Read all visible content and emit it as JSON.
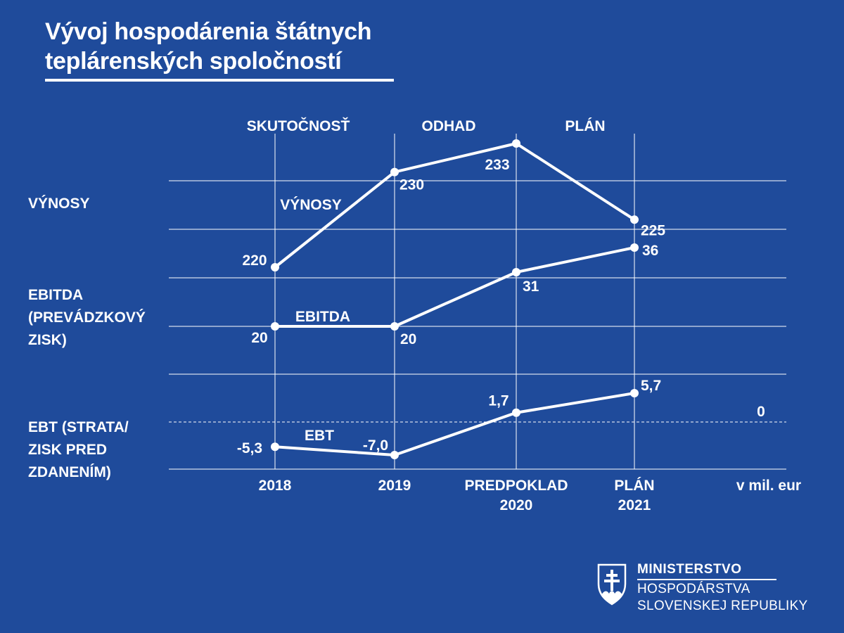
{
  "title": {
    "line1": "Vývoj hospodárenia štátnych",
    "line2": "teplárenských spoločností"
  },
  "row_labels": {
    "revenue": "VÝNOSY",
    "ebitda": "EBITDA\n(PREVÁDZKOVÝ\nZISK)",
    "ebt": "EBT (STRATA/\nZISK PRED\nZDANENÍM)"
  },
  "logo": {
    "line1": "MINISTERSTVO",
    "line2": "HOSPODÁRSTVA",
    "line3": "SLOVENSKEJ REPUBLIKY"
  },
  "colors": {
    "background": "#1f4b9b",
    "foreground": "#ffffff"
  },
  "chart_data": {
    "type": "line",
    "periods": [
      "SKUTOČNOSŤ",
      "ODHAD",
      "PLÁN"
    ],
    "categories": [
      "2018",
      "2019",
      "PREDPOKLAD\n2020",
      "PLÁN\n2021"
    ],
    "unit_label": "v mil. eur",
    "zero_label": "0",
    "series": [
      {
        "name": "VÝNOSY",
        "values": [
          220,
          230,
          233,
          225
        ],
        "labels": [
          "220",
          "230",
          "233",
          "225"
        ]
      },
      {
        "name": "EBITDA",
        "values": [
          20,
          20,
          31,
          36
        ],
        "labels": [
          "20",
          "20",
          "31",
          "36"
        ]
      },
      {
        "name": "EBT",
        "values": [
          -5.3,
          -7.0,
          1.7,
          5.7
        ],
        "labels": [
          "-5,3",
          "-7,0",
          "1,7",
          "5,7"
        ]
      }
    ],
    "grid": true,
    "zero_line_dashed": true
  }
}
